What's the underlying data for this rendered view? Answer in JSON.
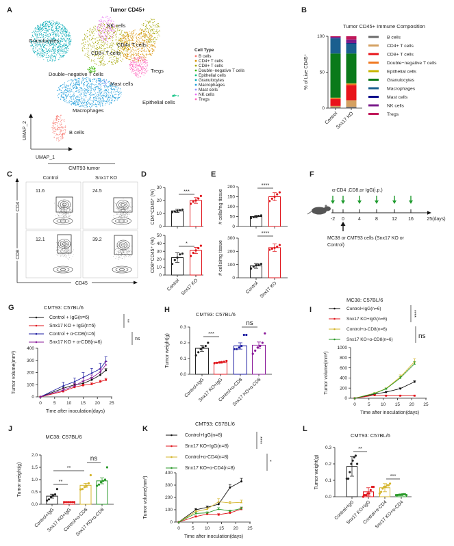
{
  "panel_letters": [
    "A",
    "B",
    "C",
    "D",
    "E",
    "F",
    "G",
    "H",
    "I",
    "J",
    "K",
    "L"
  ],
  "umap": {
    "title": "Tumor CD45+",
    "axis_x": "UMAP_1",
    "axis_y": "UMAP_2",
    "legend_title": "Cell Type",
    "cell_types": [
      {
        "name": "B cells",
        "color": "#F8766D"
      },
      {
        "name": "CD4+ T cells",
        "color": "#D89000"
      },
      {
        "name": "CD8+ T cells",
        "color": "#A3A500"
      },
      {
        "name": "Double−negative T cells",
        "color": "#39B600"
      },
      {
        "name": "Epithelial cells",
        "color": "#00BF7D"
      },
      {
        "name": "Granulocytes",
        "color": "#00A9B5"
      },
      {
        "name": "Macrophages",
        "color": "#1E9CDB"
      },
      {
        "name": "Mast cells",
        "color": "#9590FF"
      },
      {
        "name": "NK cells",
        "color": "#E76BF3"
      },
      {
        "name": "Tregs",
        "color": "#FF62BC"
      }
    ],
    "cluster_labels": [
      "Granulocytes",
      "NK cells",
      "CD4+ T cells",
      "CD8+ T cells",
      "Tregs",
      "Double−negative T cells",
      "Mast cells",
      "Epithelial cells",
      "Macrophages",
      "B cells"
    ]
  },
  "flow": {
    "title": "CMT93  tumor",
    "columns": [
      "Control",
      "Snx17 KO"
    ],
    "rows": [
      "CD4",
      "CD8"
    ],
    "x_axis": "CD45",
    "gate_values": [
      [
        "11.6",
        "24.5"
      ],
      [
        "12.1",
        "39.2"
      ]
    ]
  },
  "schedule": {
    "treatment_text": "α-CD4 ,CD8,or IgG(i.p.)",
    "days": [
      "-2",
      "0",
      "4",
      "8",
      "12",
      "16"
    ],
    "end_label": "25(days)",
    "injection_text_line1": "MC38  or CMT93 cells (Snx17 KO or",
    "injection_text_line2": "Control)",
    "arrow_color": "#1E9A2E"
  },
  "chart_data": [
    {
      "panel": "B",
      "type": "bar",
      "stacked": true,
      "title": "Tumor CD45+ Immune Composition",
      "ylabel": "% of Live CD45⁺",
      "categories": [
        "Control",
        "Snx17 KO"
      ],
      "ylim": [
        0,
        100
      ],
      "yticks": [
        0,
        50,
        100
      ],
      "series": [
        {
          "name": "B cells",
          "color": "#6B6B6B",
          "values": [
            1,
            2
          ]
        },
        {
          "name": "CD4+ T cells",
          "color": "#D4A060",
          "values": [
            2,
            9
          ]
        },
        {
          "name": "CD8+ T cells",
          "color": "#E8141A",
          "values": [
            10,
            21
          ]
        },
        {
          "name": "Double−negative T cells",
          "color": "#F07820",
          "values": [
            1,
            2
          ]
        },
        {
          "name": "Epithelial cells",
          "color": "#C8B400",
          "values": [
            0.5,
            0.5
          ]
        },
        {
          "name": "Granulocytes",
          "color": "#0A7A1A",
          "values": [
            61.5,
            41.5
          ]
        },
        {
          "name": "Macrophages",
          "color": "#1A5F8F",
          "values": [
            21,
            14
          ]
        },
        {
          "name": "Mast cells",
          "color": "#0A0A8A",
          "values": [
            0.5,
            0.5
          ]
        },
        {
          "name": "NK cells",
          "color": "#7A1A8A",
          "values": [
            1.5,
            5
          ]
        },
        {
          "name": "Tregs",
          "color": "#C0185A",
          "values": [
            1,
            4.5
          ]
        }
      ]
    },
    {
      "panel": "D",
      "type": "bar",
      "title": "",
      "ylabel": "CD4⁺CD45⁺ (%)",
      "categories": [
        "Control",
        "Snx17 KO"
      ],
      "values": [
        12,
        20
      ],
      "errors": [
        1.2,
        2.2
      ],
      "points": [
        [
          11,
          11.5,
          12,
          12.5,
          13
        ],
        [
          17.5,
          19,
          20,
          21.5,
          23.5
        ]
      ],
      "colors": [
        "#222222",
        "#E0161C"
      ],
      "ylim": [
        0,
        30
      ],
      "yticks": [
        0,
        10,
        20,
        30
      ],
      "significance": [
        {
          "from": 0,
          "to": 1,
          "label": "***"
        }
      ]
    },
    {
      "panel": "D",
      "type": "bar",
      "title": "",
      "ylabel": "CD8⁺CD45⁺ (%)",
      "categories": [
        "Control",
        "Snx17 KO"
      ],
      "values": [
        22,
        31
      ],
      "errors": [
        6,
        4
      ],
      "points": [
        [
          14,
          19,
          22,
          26,
          27
        ],
        [
          24,
          28,
          31,
          34,
          37
        ]
      ],
      "colors": [
        "#222222",
        "#E0161C"
      ],
      "ylim": [
        0,
        50
      ],
      "yticks": [
        0,
        10,
        20,
        30,
        40,
        50
      ],
      "significance": [
        {
          "from": 0,
          "to": 1,
          "label": "*"
        }
      ]
    },
    {
      "panel": "E",
      "type": "bar",
      "title": "",
      "ylabel": "# cells/mg tissue",
      "categories": [
        "Control",
        "Snx17 KO"
      ],
      "values": [
        50,
        150
      ],
      "errors": [
        6,
        20
      ],
      "points": [
        [
          43,
          47,
          50,
          53,
          56
        ],
        [
          128,
          140,
          150,
          162,
          172
        ]
      ],
      "colors": [
        "#222222",
        "#E0161C"
      ],
      "ylim": [
        0,
        200
      ],
      "yticks": [
        0,
        50,
        100,
        150,
        200
      ],
      "significance": [
        {
          "from": 0,
          "to": 1,
          "label": "****"
        }
      ]
    },
    {
      "panel": "E",
      "type": "bar",
      "title": "",
      "ylabel": "# cells/mg tissue",
      "categories": [
        "Control",
        "Snx17 KO"
      ],
      "values": [
        90,
        228
      ],
      "errors": [
        18,
        28
      ],
      "points": [
        [
          70,
          85,
          95,
          100,
          105
        ],
        [
          212,
          220,
          226,
          235,
          248
        ]
      ],
      "colors": [
        "#222222",
        "#E0161C"
      ],
      "ylim": [
        0,
        300
      ],
      "yticks": [
        0,
        100,
        200,
        300
      ],
      "significance": [
        {
          "from": 0,
          "to": 1,
          "label": "****"
        }
      ]
    },
    {
      "panel": "G",
      "type": "line",
      "title": "CMT93: C57BL/6",
      "xlabel": "Time after inoculation(days)",
      "ylabel": "Tumor volume(mm³)",
      "xlim": [
        0,
        25
      ],
      "xticks": [
        0,
        5,
        10,
        15,
        20,
        25
      ],
      "ylim": [
        0,
        400
      ],
      "yticks": [
        0,
        100,
        200,
        300,
        400
      ],
      "x": [
        0,
        8,
        12,
        15,
        18,
        21,
        23
      ],
      "series": [
        {
          "name": "Control + IgG(n=6)",
          "color": "#111111",
          "values": [
            0,
            70,
            100,
            110,
            140,
            180,
            220
          ],
          "errors": [
            0,
            15,
            20,
            20,
            20,
            25,
            12
          ]
        },
        {
          "name": "Snx17 KO + IgG(n=6)",
          "color": "#E0161C",
          "values": [
            0,
            45,
            80,
            95,
            105,
            125,
            140
          ],
          "errors": [
            0,
            10,
            10,
            10,
            10,
            12,
            12
          ]
        },
        {
          "name": "Control + α-CD8(n=6)",
          "color": "#1A1AA0",
          "values": [
            0,
            90,
            125,
            160,
            195,
            230,
            295
          ],
          "errors": [
            0,
            30,
            30,
            40,
            40,
            45,
            35
          ]
        },
        {
          "name": "Snx17 KO + α-CD8(n=6)",
          "color": "#8A1A9A",
          "values": [
            0,
            55,
            90,
            130,
            155,
            205,
            265
          ],
          "errors": [
            0,
            15,
            20,
            25,
            25,
            30,
            25
          ]
        }
      ],
      "legend_significance": [
        {
          "from": 0,
          "to": 1,
          "label": "**"
        },
        {
          "from": 2,
          "to": 3,
          "label": "ns"
        }
      ]
    },
    {
      "panel": "H",
      "type": "bar",
      "title": "CMT93: C57BL/6",
      "ylabel": "Tumor weight(g)",
      "categories": [
        "Control+IgG",
        "Snx17 KO+IgG",
        "Control+α-CD8",
        "Snx17 KO+α-CD8"
      ],
      "values": [
        0.165,
        0.075,
        0.18,
        0.185
      ],
      "errors": [
        0.02,
        0.005,
        0.02,
        0.02
      ],
      "points": [
        [
          0.12,
          0.14,
          0.16,
          0.17,
          0.18,
          0.2
        ],
        [
          0.07,
          0.072,
          0.075,
          0.078,
          0.08,
          0.085
        ],
        [
          0.16,
          0.16,
          0.17,
          0.18,
          0.25,
          0.25
        ],
        [
          0.13,
          0.15,
          0.17,
          0.18,
          0.2,
          0.26
        ]
      ],
      "colors": [
        "#222222",
        "#E0161C",
        "#1A1AA0",
        "#8A1A9A"
      ],
      "ylim": [
        0,
        0.3
      ],
      "yticks": [
        0.0,
        0.1,
        0.2,
        0.3
      ],
      "significance": [
        {
          "from": 0,
          "to": 1,
          "label": "***"
        },
        {
          "from": 2,
          "to": 3,
          "label": "ns"
        }
      ]
    },
    {
      "panel": "I",
      "type": "line",
      "title": "MC38: C57BL/6",
      "xlabel": "Time after inoculation(days)",
      "ylabel": "Tumor volume(mm³)",
      "xlim": [
        0,
        25
      ],
      "xticks": [
        0,
        5,
        10,
        15,
        20,
        25
      ],
      "ylim": [
        0,
        1000
      ],
      "yticks": [
        0,
        200,
        400,
        600,
        800,
        1000
      ],
      "x": [
        0,
        7,
        11,
        16,
        21
      ],
      "series": [
        {
          "name": "Control+IgG(n=6)",
          "color": "#111111",
          "values": [
            0,
            80,
            120,
            190,
            325
          ],
          "errors": [
            0,
            10,
            15,
            15,
            20
          ]
        },
        {
          "name": "Snx17 KO+IgG(n=6)",
          "color": "#E0161C",
          "values": [
            0,
            60,
            50,
            50,
            50
          ],
          "errors": [
            0,
            8,
            5,
            5,
            5
          ]
        },
        {
          "name": "Control+α-CD8(n=6)",
          "color": "#D4B42A",
          "values": [
            0,
            100,
            190,
            420,
            720
          ],
          "errors": [
            0,
            10,
            15,
            40,
            60
          ]
        },
        {
          "name": "Snx17 KO+α-CD8(n=6)",
          "color": "#2A9A2A",
          "values": [
            0,
            95,
            185,
            400,
            680
          ],
          "errors": [
            0,
            10,
            15,
            30,
            40
          ]
        }
      ],
      "legend_significance": [
        {
          "from": 0,
          "to": 1,
          "label": "****"
        },
        {
          "from": 2,
          "to": 3,
          "label": "ns"
        }
      ]
    },
    {
      "panel": "J",
      "type": "bar",
      "title": "MC38: C57BL/6",
      "ylabel": "Tumor weight(g)",
      "categories": [
        "Control+IgG",
        "Snx17 KO+IgG",
        "Control+α-CD8",
        "Snx17 KO+α-CD8"
      ],
      "values": [
        0.33,
        0.09,
        0.77,
        0.95
      ],
      "errors": [
        0.08,
        0.005,
        0.08,
        0.12
      ],
      "points": [
        [
          0.15,
          0.2,
          0.3,
          0.35,
          0.4,
          0.62
        ],
        [
          0.09,
          0.09,
          0.09,
          0.09,
          0.09,
          0.09
        ],
        [
          0.6,
          0.62,
          0.7,
          0.75,
          0.85,
          1.18
        ],
        [
          0.75,
          0.8,
          0.9,
          0.95,
          1.0,
          1.5
        ]
      ],
      "colors": [
        "#222222",
        "#E0161C",
        "#D4B42A",
        "#2A9A2A"
      ],
      "ylim": [
        0,
        2.0
      ],
      "yticks": [
        0.0,
        0.5,
        1.0,
        1.5,
        2.0
      ],
      "significance": [
        {
          "from": 0,
          "to": 1,
          "label": "**"
        },
        {
          "from": 0,
          "to": 2,
          "label": "**"
        },
        {
          "from": 2,
          "to": 3,
          "label": "ns"
        }
      ]
    },
    {
      "panel": "K",
      "type": "line",
      "title": "CMT93: C57BL/6",
      "xlabel": "Time after inoculation(days)",
      "ylabel": "Tumor volume(mm³)",
      "xlim": [
        0,
        25
      ],
      "xticks": [
        0,
        5,
        10,
        15,
        20,
        25
      ],
      "ylim": [
        0,
        400
      ],
      "yticks": [
        0,
        100,
        200,
        300,
        400
      ],
      "x": [
        0,
        6,
        10,
        14,
        18,
        22
      ],
      "series": [
        {
          "name": "Control+IgG(n=8)",
          "color": "#111111",
          "values": [
            0,
            100,
            120,
            145,
            280,
            330
          ],
          "errors": [
            0,
            10,
            10,
            15,
            25,
            25
          ]
        },
        {
          "name": "Snx17 KO+IgG(n=8)",
          "color": "#E0161C",
          "values": [
            0,
            45,
            65,
            60,
            75,
            105
          ],
          "errors": [
            0,
            5,
            8,
            8,
            8,
            12
          ]
        },
        {
          "name": "Control+α-CD4(n=8)",
          "color": "#D4B42A",
          "values": [
            0,
            85,
            105,
            165,
            155,
            160
          ],
          "errors": [
            0,
            10,
            12,
            25,
            15,
            18
          ]
        },
        {
          "name": "Snx17 KO+α-CD4(n=8)",
          "color": "#2A9A2A",
          "values": [
            0,
            70,
            75,
            105,
            90,
            110
          ],
          "errors": [
            0,
            8,
            8,
            12,
            8,
            12
          ]
        }
      ],
      "legend_significance": [
        {
          "from": 0,
          "to": 1,
          "label": "****"
        },
        {
          "from": 2,
          "to": 3,
          "label": "*"
        }
      ]
    },
    {
      "panel": "L",
      "type": "bar",
      "title": "CMT93: C57BL/6",
      "ylabel": "Tumor weight(g)",
      "categories": [
        "Control+IgG",
        "Snx17 KO+IgG",
        "Control+α-CD4",
        "Snx17 KO+α-CD4"
      ],
      "values": [
        0.185,
        0.03,
        0.055,
        0.012
      ],
      "errors": [
        0.06,
        0.025,
        0.025,
        0.005
      ],
      "points": [
        [
          0.11,
          0.11,
          0.15,
          0.2,
          0.22,
          0.24,
          0.25,
          0.2
        ],
        [
          0.0,
          0.01,
          0.01,
          0.02,
          0.02,
          0.04,
          0.06,
          0.06
        ],
        [
          0.02,
          0.03,
          0.05,
          0.06,
          0.06,
          0.07,
          0.07,
          0.08
        ],
        [
          0.01,
          0.01,
          0.012,
          0.012,
          0.014,
          0.015,
          0.015,
          0.01
        ]
      ],
      "colors": [
        "#222222",
        "#E0161C",
        "#D4B42A",
        "#2A9A2A"
      ],
      "ylim": [
        0,
        0.3
      ],
      "yticks": [
        0.0,
        0.1,
        0.2,
        0.3
      ],
      "significance": [
        {
          "from": 0,
          "to": 1,
          "label": "**"
        },
        {
          "from": 2,
          "to": 3,
          "label": "***"
        }
      ]
    }
  ]
}
